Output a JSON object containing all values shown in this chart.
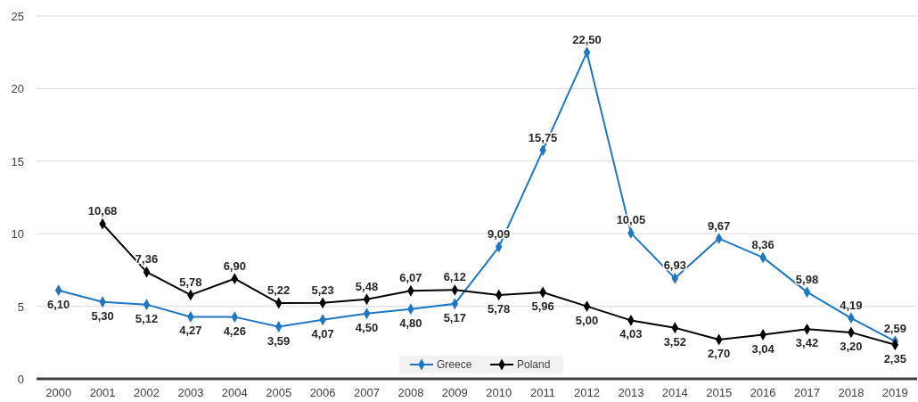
{
  "chart_data": {
    "type": "line",
    "categories": [
      "2000",
      "2001",
      "2002",
      "2003",
      "2004",
      "2005",
      "2006",
      "2007",
      "2008",
      "2009",
      "2010",
      "2011",
      "2012",
      "2013",
      "2014",
      "2015",
      "2016",
      "2017",
      "2018",
      "2019"
    ],
    "ylim": [
      0,
      25
    ],
    "yticks": [
      0,
      5,
      10,
      15,
      20,
      25
    ],
    "grid": "y",
    "legend": "bottom",
    "marker": "diamond",
    "series": [
      {
        "name": "Greece",
        "color": "#1f77c4",
        "values": [
          6.1,
          5.3,
          5.12,
          4.27,
          4.26,
          3.59,
          4.07,
          4.5,
          4.8,
          5.17,
          9.09,
          15.75,
          22.5,
          10.05,
          6.93,
          9.67,
          8.36,
          5.98,
          4.19,
          2.59
        ],
        "value_labels": [
          "6,10",
          "5,30",
          "5,12",
          "4,27",
          "4,26",
          "3,59",
          "4,07",
          "4,50",
          "4,80",
          "5,17",
          "9,09",
          "15,75",
          "22,50",
          "10,05",
          "6,93",
          "9,67",
          "8,36",
          "5,98",
          "4,19",
          "2,59"
        ]
      },
      {
        "name": "Poland",
        "color": "#000000",
        "values": [
          null,
          10.68,
          7.36,
          5.78,
          6.9,
          5.22,
          5.23,
          5.48,
          6.07,
          6.12,
          5.78,
          5.96,
          5.0,
          4.03,
          3.52,
          2.7,
          3.04,
          3.42,
          3.2,
          2.35
        ],
        "value_labels": [
          null,
          "10,68",
          "7,36",
          "5,78",
          "6,90",
          "5,22",
          "5,23",
          "5,48",
          "6,07",
          "6,12",
          "5,78",
          "5,96",
          "5,00",
          "4,03",
          "3,52",
          "2,70",
          "3,04",
          "3,42",
          "3,20",
          "2,35"
        ]
      }
    ]
  }
}
